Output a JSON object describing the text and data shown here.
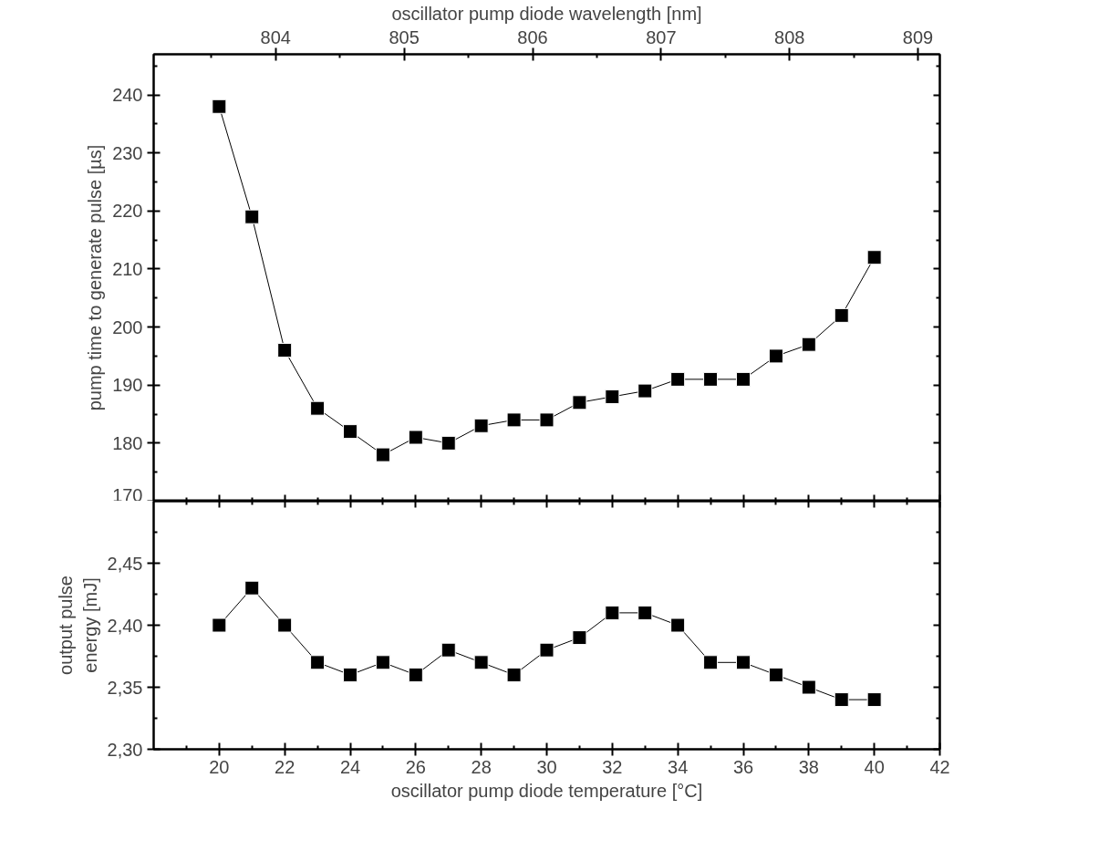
{
  "chart_data": [
    {
      "type": "line",
      "marker": "square",
      "line_style": "solid",
      "grid": false,
      "tick_labels": "y",
      "x": [
        20,
        21,
        22,
        23,
        24,
        25,
        26,
        27,
        28,
        29,
        30,
        31,
        32,
        33,
        34,
        35,
        36,
        37,
        38,
        39,
        40
      ],
      "series": [
        {
          "color": "#000000",
          "values": [
            238,
            219,
            196,
            186,
            182,
            178,
            181,
            180,
            183,
            184,
            184,
            187,
            188,
            189,
            191,
            191,
            191,
            195,
            197,
            202,
            212
          ]
        }
      ],
      "ylabel": "pump time to generate pulse [µs]",
      "x2label": "oscillator pump diode wavelength [nm]",
      "xlim": [
        18,
        42
      ],
      "xticks": [
        20,
        22,
        24,
        26,
        28,
        30,
        32,
        34,
        36,
        38,
        40,
        42,
        {
          "value": 19,
          "label": null
        },
        {
          "value": 21,
          "label": null
        },
        {
          "value": 23,
          "label": null
        },
        {
          "value": 25,
          "label": null
        },
        {
          "value": 27,
          "label": null
        },
        {
          "value": 29,
          "label": null
        },
        {
          "value": 31,
          "label": null
        },
        {
          "value": 33,
          "label": null
        },
        {
          "value": 35,
          "label": null
        },
        {
          "value": 37,
          "label": null
        },
        {
          "value": 39,
          "label": null
        },
        {
          "value": 41,
          "label": null
        }
      ],
      "ylim": [
        170,
        247
      ],
      "yticks": [
        170,
        180,
        190,
        200,
        210,
        220,
        230,
        240,
        {
          "value": 175,
          "label": null
        },
        {
          "value": 185,
          "label": null
        },
        {
          "value": 195,
          "label": null
        },
        {
          "value": 205,
          "label": null
        },
        {
          "value": 215,
          "label": null
        },
        {
          "value": 225,
          "label": null
        },
        {
          "value": 235,
          "label": null
        },
        {
          "value": 245,
          "label": null
        }
      ],
      "x2lim": [
        803.05,
        809.17
      ],
      "x2ticks": [
        804,
        805,
        806,
        807,
        808,
        809,
        {
          "value": 803.5,
          "label": null
        },
        {
          "value": 804.5,
          "label": null
        },
        {
          "value": 805.5,
          "label": null
        },
        {
          "value": 806.5,
          "label": null
        },
        {
          "value": 807.5,
          "label": null
        },
        {
          "value": 808.5,
          "label": null
        }
      ]
    },
    {
      "type": "line",
      "marker": "square",
      "line_style": "solid",
      "grid": false,
      "x": [
        20,
        21,
        22,
        23,
        24,
        25,
        26,
        27,
        28,
        29,
        30,
        31,
        32,
        33,
        34,
        35,
        36,
        37,
        38,
        39,
        40
      ],
      "series": [
        {
          "color": "#000000",
          "values": [
            2.4,
            2.43,
            2.4,
            2.37,
            2.36,
            2.37,
            2.36,
            2.38,
            2.37,
            2.36,
            2.38,
            2.39,
            2.41,
            2.41,
            2.4,
            2.37,
            2.37,
            2.36,
            2.35,
            2.34,
            2.34
          ]
        }
      ],
      "xlabel": "oscillator pump diode temperature [°C]",
      "ylabel": "output pulse\nenergy [mJ]",
      "xlim": [
        18,
        42
      ],
      "xticks": [
        20,
        22,
        24,
        26,
        28,
        30,
        32,
        34,
        36,
        38,
        40,
        42,
        {
          "value": 19,
          "label": null
        },
        {
          "value": 21,
          "label": null
        },
        {
          "value": 23,
          "label": null
        },
        {
          "value": 25,
          "label": null
        },
        {
          "value": 27,
          "label": null
        },
        {
          "value": 29,
          "label": null
        },
        {
          "value": 31,
          "label": null
        },
        {
          "value": 33,
          "label": null
        },
        {
          "value": 35,
          "label": null
        },
        {
          "value": 37,
          "label": null
        },
        {
          "value": 39,
          "label": null
        },
        {
          "value": 41,
          "label": null
        }
      ],
      "ylim": [
        2.3,
        2.5
      ],
      "yticks": [
        {
          "value": 2.3,
          "label": "2,30"
        },
        {
          "value": 2.35,
          "label": "2,35"
        },
        {
          "value": 2.4,
          "label": "2,40"
        },
        {
          "value": 2.45,
          "label": "2,45"
        },
        {
          "value": 2.325,
          "label": null
        },
        {
          "value": 2.375,
          "label": null
        },
        {
          "value": 2.425,
          "label": null
        },
        {
          "value": 2.475,
          "label": null
        }
      ]
    }
  ]
}
